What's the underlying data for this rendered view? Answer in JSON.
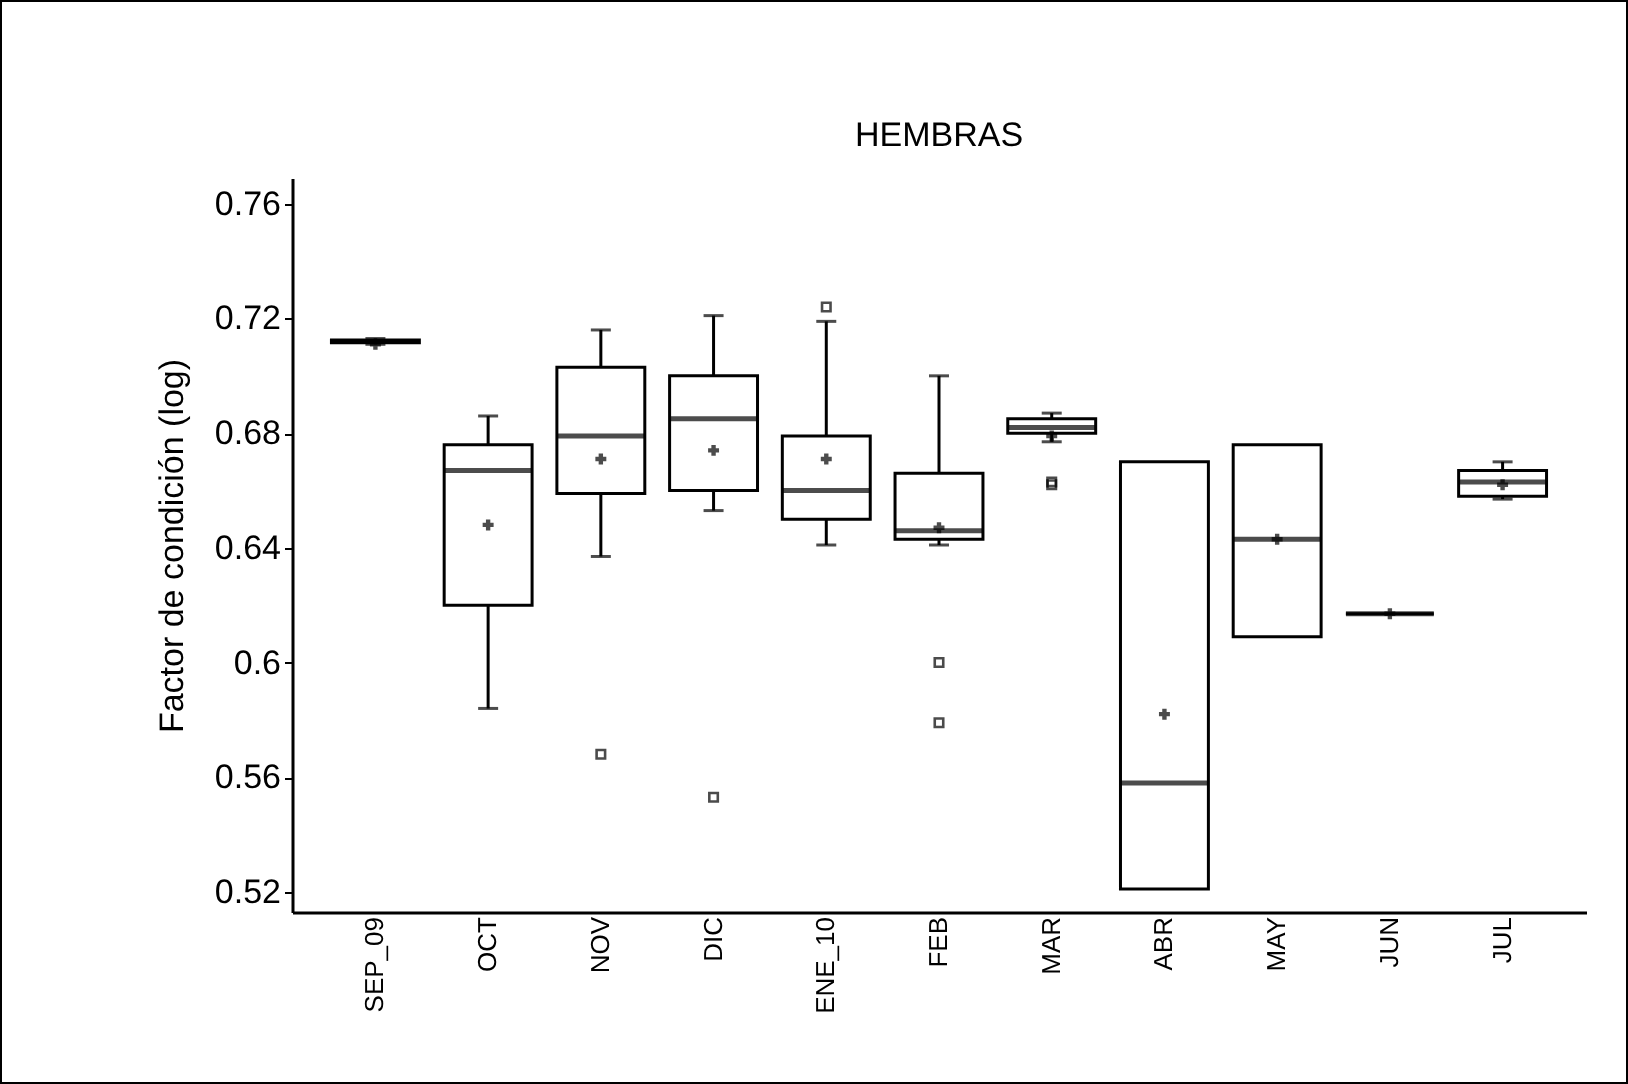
{
  "chart_data": {
    "type": "box",
    "title": "HEMBRAS",
    "ylabel": "Factor de condición (log)",
    "categories": [
      "SEP_09",
      "OCT",
      "NOV",
      "DIC",
      "ENE_10",
      "FEB",
      "MAR",
      "ABR",
      "MAY",
      "JUN",
      "JUL"
    ],
    "boxes": [
      {
        "low": 0.711,
        "q1": 0.7115,
        "median": 0.712,
        "q3": 0.7125,
        "high": 0.713,
        "mean": 0.711
      },
      {
        "low": 0.584,
        "q1": 0.62,
        "median": 0.667,
        "q3": 0.676,
        "high": 0.686,
        "mean": 0.648
      },
      {
        "low": 0.637,
        "q1": 0.659,
        "median": 0.679,
        "q3": 0.703,
        "high": 0.716,
        "mean": 0.671,
        "outliers": [
          0.568
        ]
      },
      {
        "low": 0.653,
        "q1": 0.66,
        "median": 0.685,
        "q3": 0.7,
        "high": 0.721,
        "mean": 0.674,
        "outliers": [
          0.553
        ]
      },
      {
        "low": 0.641,
        "q1": 0.65,
        "median": 0.66,
        "q3": 0.679,
        "high": 0.719,
        "mean": 0.671,
        "outliers": [
          0.724
        ]
      },
      {
        "low": 0.641,
        "q1": 0.643,
        "median": 0.646,
        "q3": 0.666,
        "high": 0.7,
        "mean": 0.647,
        "outliers": [
          0.6,
          0.579
        ]
      },
      {
        "low": 0.677,
        "q1": 0.68,
        "median": 0.682,
        "q3": 0.685,
        "high": 0.687,
        "mean": 0.679,
        "outliers": [
          0.663,
          0.662
        ]
      },
      {
        "low": 0.521,
        "q1": 0.521,
        "median": 0.558,
        "q3": 0.67,
        "high": 0.67,
        "mean": 0.582
      },
      {
        "low": 0.609,
        "q1": 0.609,
        "median": 0.643,
        "q3": 0.676,
        "high": 0.676,
        "mean": 0.643
      },
      {
        "low": 0.617,
        "q1": 0.617,
        "median": 0.617,
        "q3": 0.617,
        "high": 0.617,
        "mean": 0.617
      },
      {
        "low": 0.657,
        "q1": 0.658,
        "median": 0.663,
        "q3": 0.667,
        "high": 0.67,
        "mean": 0.662
      }
    ],
    "ylim": [
      0.513,
      0.769
    ],
    "yticks": [
      0.52,
      0.56,
      0.6,
      0.64,
      0.68,
      0.72,
      0.76
    ],
    "grid": false
  }
}
